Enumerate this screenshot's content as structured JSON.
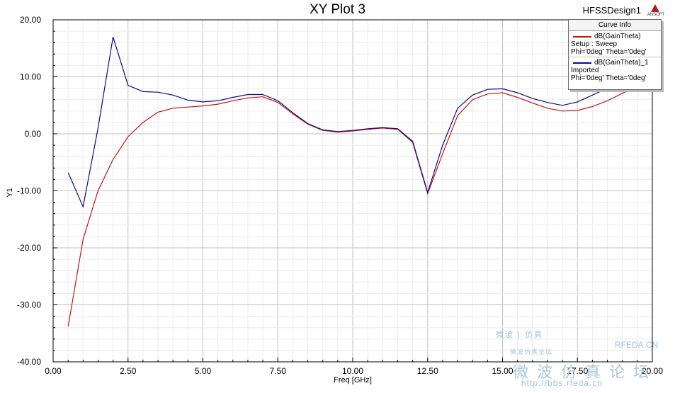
{
  "window": {
    "design_name": "HFSSDesign1",
    "logo_text": "ANSOFT"
  },
  "legend": {
    "header": "Curve Info",
    "entries": [
      {
        "name": "dB(GainTheta)",
        "line2": "Setup : Sweep",
        "line3": "Phi='0deg' Theta='0deg'",
        "color": "#c81414"
      },
      {
        "name": "dB(GainTheta)_1",
        "line2": "Imported",
        "line3": "Phi='0deg' Theta='0deg'",
        "color": "#0a0a8c"
      }
    ]
  },
  "watermark": {
    "cn_top": "微波 | 仿真",
    "brand": "RFEDA.CN",
    "cn_small": "微波仿真论坛",
    "cn_large": "微波仿真论坛",
    "url": "http://bbs.rfeda.cn"
  },
  "chart_data": {
    "type": "line",
    "title": "XY Plot 3",
    "xlabel": "Freq [GHz]",
    "ylabel": "Y1",
    "xlim": [
      0,
      20
    ],
    "ylim": [
      -40,
      20
    ],
    "grid": true,
    "legend_position": "top-right",
    "xticks": [
      "0.00",
      "2.50",
      "5.00",
      "7.50",
      "10.00",
      "12.50",
      "15.00",
      "17.50",
      "20.00"
    ],
    "yticks": [
      "20.00",
      "10.00",
      "0.00",
      "-10.00",
      "-20.00",
      "-30.00",
      "-40.00"
    ],
    "series": [
      {
        "name": "dB(GainTheta)",
        "color": "#c81414",
        "x": [
          0.5,
          1.0,
          1.5,
          2.0,
          2.5,
          3.0,
          3.5,
          4.0,
          4.5,
          5.0,
          5.5,
          6.0,
          6.5,
          7.0,
          7.5,
          8.0,
          8.5,
          9.0,
          9.5,
          10.0,
          10.5,
          11.0,
          11.5,
          12.0,
          12.5,
          13.0,
          13.5,
          14.0,
          14.5,
          15.0,
          15.5,
          16.0,
          16.5,
          17.0,
          17.5,
          18.0,
          18.5,
          19.0,
          19.5
        ],
        "y": [
          -33.8,
          -18.5,
          -10.0,
          -4.5,
          -0.5,
          2.0,
          3.8,
          4.5,
          4.7,
          4.9,
          5.2,
          5.8,
          6.3,
          6.5,
          5.5,
          3.5,
          1.7,
          0.6,
          0.3,
          0.5,
          0.8,
          1.0,
          0.8,
          -1.5,
          -10.5,
          -3.5,
          3.2,
          6.0,
          7.0,
          7.2,
          6.4,
          5.4,
          4.5,
          4.0,
          4.1,
          4.8,
          5.8,
          7.1,
          8.4
        ]
      },
      {
        "name": "dB(GainTheta)_1",
        "color": "#0a0a8c",
        "x": [
          0.5,
          1.0,
          1.5,
          2.0,
          2.5,
          3.0,
          3.5,
          4.0,
          4.5,
          5.0,
          5.5,
          6.0,
          6.5,
          7.0,
          7.5,
          8.0,
          8.5,
          9.0,
          9.5,
          10.0,
          10.5,
          11.0,
          11.5,
          12.0,
          12.5,
          13.0,
          13.5,
          14.0,
          14.5,
          15.0,
          15.5,
          16.0,
          16.5,
          17.0,
          17.5,
          18.0,
          18.5,
          19.0,
          19.5
        ],
        "y": [
          -6.8,
          -12.8,
          1.0,
          17.0,
          8.5,
          7.4,
          7.3,
          6.8,
          5.9,
          5.6,
          5.8,
          6.4,
          6.9,
          6.9,
          5.8,
          3.7,
          1.8,
          0.7,
          0.4,
          0.6,
          0.9,
          1.1,
          0.9,
          -1.3,
          -10.3,
          -2.0,
          4.5,
          6.8,
          7.8,
          7.9,
          7.2,
          6.2,
          5.5,
          5.0,
          5.6,
          6.8,
          8.0,
          9.0,
          10.0
        ]
      }
    ]
  }
}
